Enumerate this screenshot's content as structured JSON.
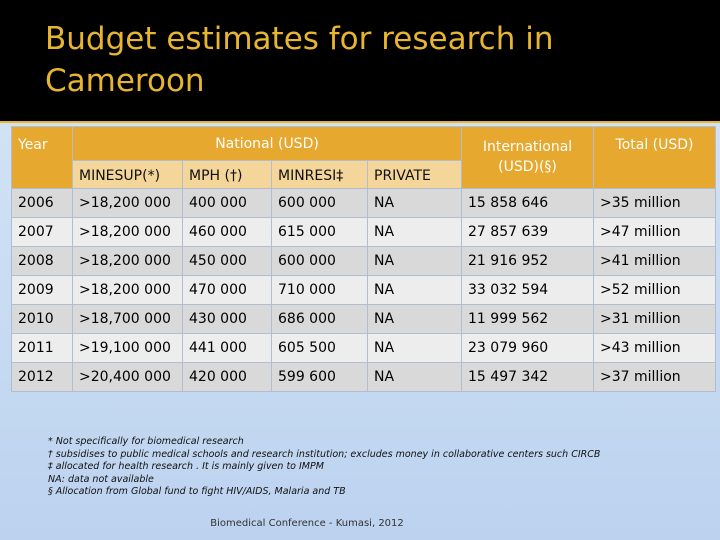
{
  "title": "Budget estimates for research in Cameroon",
  "table": {
    "headers": {
      "year": "Year",
      "national": "National (USD)",
      "international": "International (USD)(§)",
      "total": "Total (USD)"
    },
    "subheaders": [
      "MINESUP(*)",
      "MPH (†)",
      "MINRESI‡",
      "PRIVATE"
    ],
    "rows": [
      [
        "2006",
        ">18,200 000",
        "400 000",
        "600 000",
        "NA",
        "15  858 646",
        ">35 million"
      ],
      [
        "2007",
        ">18,200 000",
        "460 000",
        "615 000",
        "NA",
        "27  857  639",
        ">47 million"
      ],
      [
        "2008",
        ">18,200 000",
        "450 000",
        "600 000",
        "NA",
        "21  916  952",
        ">41 million"
      ],
      [
        "2009",
        ">18,200 000",
        "470 000",
        "710 000",
        "NA",
        "33  032  594",
        ">52 million"
      ],
      [
        "2010",
        ">18,700 000",
        "430 000",
        "686 000",
        "NA",
        "11  999 562",
        ">31 million"
      ],
      [
        "2011",
        ">19,100 000",
        "441 000",
        "605 500",
        "NA",
        "23 079 960",
        ">43 million"
      ],
      [
        "2012",
        ">20,400 000",
        "420 000",
        "599 600",
        "NA",
        "15  497 342",
        ">37 million"
      ]
    ]
  },
  "footnotes": [
    "* Not specifically for biomedical research",
    "† subsidises to public medical schools and research institution; excludes money in collaborative centers such CIRCB",
    "‡ allocated for health research . It is mainly given to IMPM",
    "NA: data not  available",
    "§ Allocation from Global fund to fight HIV/AIDS, Malaria and TB"
  ],
  "footer": "Biomedical Conference - Kumasi, 2012",
  "colors": {
    "title_text": "#e8b530",
    "title_band": "#000000",
    "header_fill": "#e6a82e",
    "subheader_fill": "#f4d69a",
    "row_dark": "#d9d9d9",
    "row_light": "#ededed",
    "background": "#c9dcf2"
  }
}
